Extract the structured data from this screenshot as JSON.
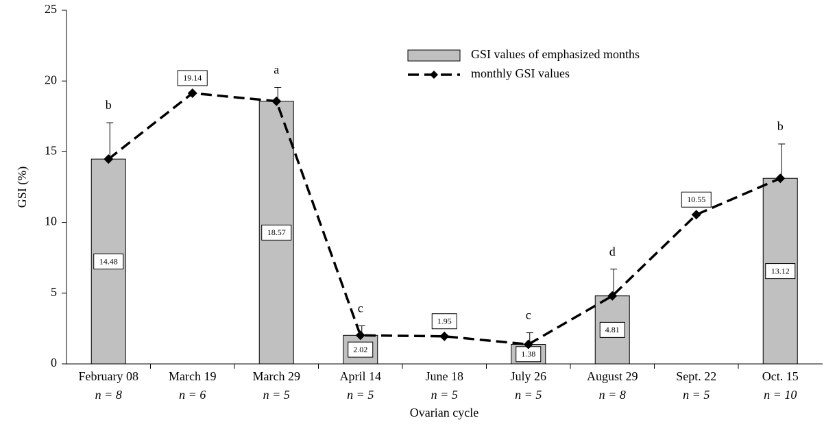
{
  "chart_data": {
    "type": "bar-line",
    "x_label": "Ovarian cycle",
    "y_label": "GSI (%)",
    "categories": [
      "February 08",
      "March 19",
      "March 29",
      "April 14",
      "June 18",
      "July 26",
      "August 29",
      "Sept. 22",
      "Oct. 15"
    ],
    "sample_sizes": [
      "n = 8",
      "n = 6",
      "n = 5",
      "n = 5",
      "n = 5",
      "n = 5",
      "n = 8",
      "n = 5",
      "n = 10"
    ],
    "series": [
      {
        "name": "GSI values of emphasized months",
        "kind": "bar",
        "color": "#c0c0c0",
        "values": [
          14.48,
          null,
          18.57,
          2.02,
          null,
          1.38,
          4.81,
          null,
          13.12
        ],
        "errors": [
          2.57,
          null,
          0.98,
          0.68,
          null,
          0.82,
          1.89,
          null,
          2.43
        ],
        "letters": [
          "b",
          null,
          "a",
          "c",
          null,
          "c",
          "d",
          null,
          "b"
        ]
      },
      {
        "name": "monthly GSI values",
        "kind": "line",
        "color": "#000000",
        "values": [
          14.48,
          19.14,
          18.57,
          2.02,
          1.95,
          1.38,
          4.81,
          10.55,
          13.12
        ]
      }
    ],
    "ylim": [
      0,
      25
    ],
    "yticks": [
      0,
      5,
      10,
      15,
      20,
      25
    ],
    "grid": false,
    "legend": "top-right"
  }
}
